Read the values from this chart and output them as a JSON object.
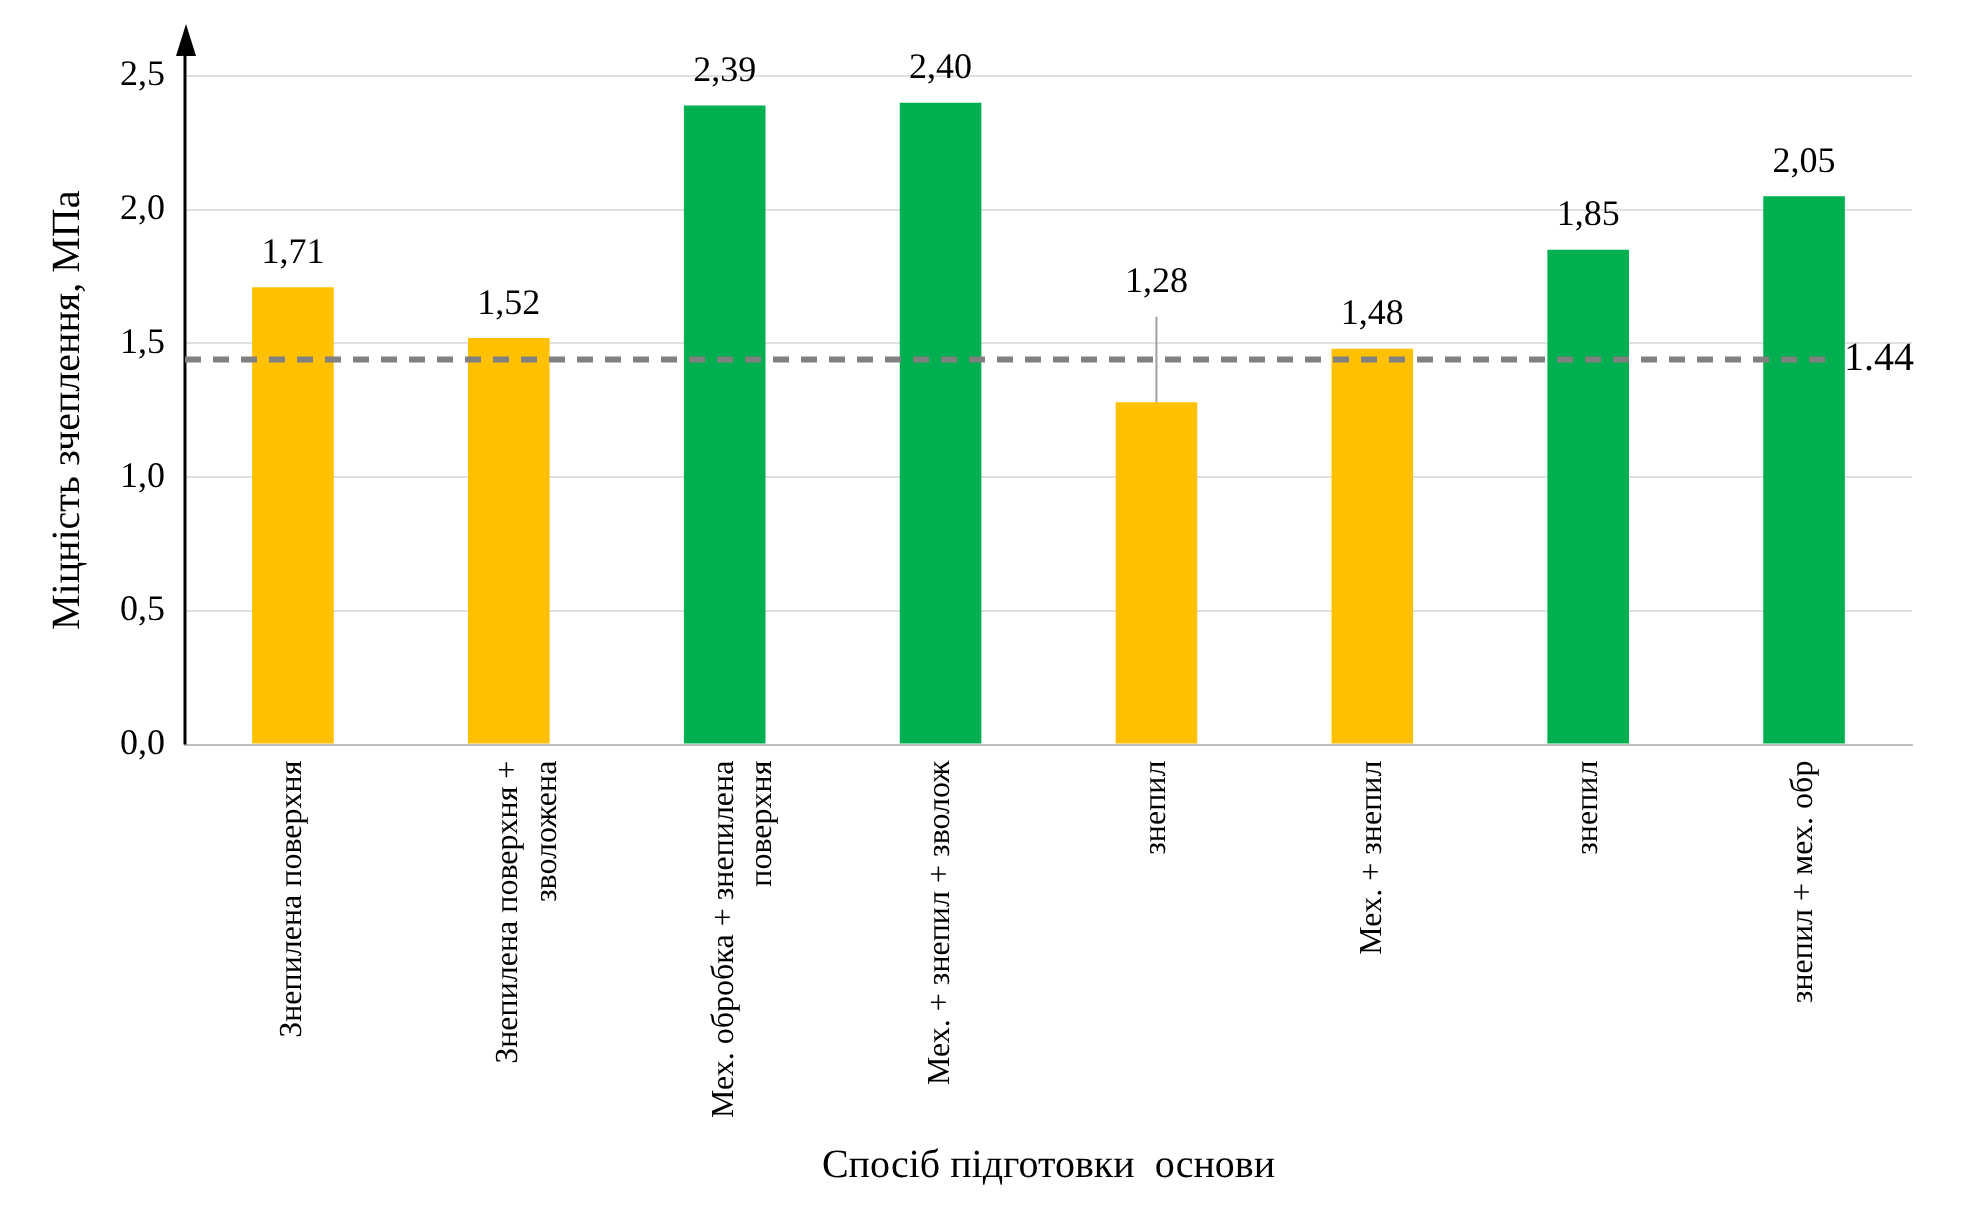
{
  "chart_data": {
    "type": "bar",
    "xlabel": "Спосіб підготовки  основи",
    "ylabel": "Міцність зчеплення, МПа",
    "categories": [
      "Знепилена поверхня",
      "Знепилена поверхня + зволожена",
      "Мех. обробка + знепилена поверхня",
      "Мех. + знепил + зволож",
      "знепил",
      "Мех. + знепил",
      "знепил",
      "знепил + мех. обр"
    ],
    "values": [
      1.71,
      1.52,
      2.39,
      2.4,
      1.28,
      1.48,
      1.85,
      2.05
    ],
    "colors": [
      "#ffc000",
      "#ffc000",
      "#00b050",
      "#00b050",
      "#ffc000",
      "#ffc000",
      "#00b050",
      "#00b050"
    ],
    "value_labels": [
      "1,71",
      "1,52",
      "2,39",
      "2,40",
      "1,28",
      "1,48",
      "1,85",
      "2,05"
    ],
    "errors": [
      null,
      null,
      null,
      null,
      0.32,
      null,
      null,
      null
    ],
    "ylim": [
      0,
      2.5
    ],
    "yticks": [
      {
        "value": 0,
        "label": "0,0"
      },
      {
        "value": 0.5,
        "label": "0,5"
      },
      {
        "value": 1,
        "label": "1,0"
      },
      {
        "value": 1.5,
        "label": "1,5"
      },
      {
        "value": 2,
        "label": "2,0"
      },
      {
        "value": 2.5,
        "label": "2,5"
      }
    ],
    "ref_lines": [
      {
        "axis": "y",
        "value": 1.44,
        "label": "1.44",
        "color": "#808080",
        "line_style": "dashed"
      }
    ],
    "grid": "y",
    "legend": false
  }
}
